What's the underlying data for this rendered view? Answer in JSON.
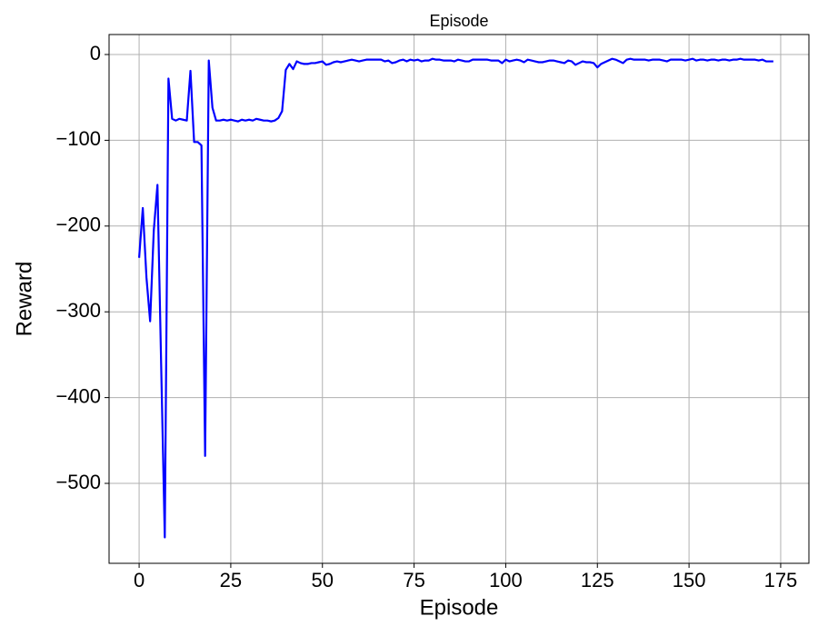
{
  "chart_data": {
    "type": "line",
    "title": "Episode",
    "xlabel": "Episode",
    "ylabel": "Reward",
    "x": [
      0,
      1,
      2,
      3,
      4,
      5,
      6,
      7,
      8,
      9,
      10,
      11,
      12,
      13,
      14,
      15,
      16,
      17,
      18,
      19,
      20,
      21,
      22,
      23,
      24,
      25,
      26,
      27,
      28,
      29,
      30,
      31,
      32,
      33,
      34,
      35,
      36,
      37,
      38,
      39,
      40,
      41,
      42,
      43,
      44,
      45,
      46,
      47,
      48,
      49,
      50,
      51,
      52,
      53,
      54,
      55,
      56,
      57,
      58,
      59,
      60,
      61,
      62,
      63,
      64,
      65,
      66,
      67,
      68,
      69,
      70,
      71,
      72,
      73,
      74,
      75,
      76,
      77,
      78,
      79,
      80,
      81,
      82,
      83,
      84,
      85,
      86,
      87,
      88,
      89,
      90,
      91,
      92,
      93,
      94,
      95,
      96,
      97,
      98,
      99,
      100,
      101,
      102,
      103,
      104,
      105,
      106,
      107,
      108,
      109,
      110,
      111,
      112,
      113,
      114,
      115,
      116,
      117,
      118,
      119,
      120,
      121,
      122,
      123,
      124,
      125,
      126,
      127,
      128,
      129,
      130,
      131,
      132,
      133,
      134,
      135,
      136,
      137,
      138,
      139,
      140,
      141,
      142,
      143,
      144,
      145,
      146,
      147,
      148,
      149,
      150,
      151,
      152,
      153,
      154,
      155,
      156,
      157,
      158,
      159,
      160,
      161,
      162,
      163,
      164,
      165,
      166,
      167,
      168,
      169,
      170,
      171,
      172,
      173
    ],
    "series": [
      {
        "color": "#0000ff",
        "values": [
          -237,
          -179,
          -260,
          -311,
          -205,
          -152,
          -360,
          -563,
          -28,
          -75,
          -77,
          -75,
          -76,
          -77,
          -19,
          -102,
          -102,
          -106,
          -468,
          -7,
          -62,
          -77,
          -77,
          -76,
          -77,
          -76,
          -77,
          -78,
          -76,
          -77,
          -76,
          -77,
          -75,
          -76,
          -77,
          -77,
          -78,
          -77,
          -74,
          -66,
          -18,
          -11,
          -17,
          -8,
          -10,
          -11,
          -11,
          -10,
          -10,
          -9,
          -8,
          -12,
          -11,
          -9,
          -8,
          -9,
          -8,
          -7,
          -6,
          -7,
          -8,
          -7,
          -6,
          -6,
          -6,
          -6,
          -6,
          -8,
          -7,
          -10,
          -9,
          -7,
          -6,
          -8,
          -6,
          -7,
          -6,
          -8,
          -7,
          -7,
          -5,
          -6,
          -6,
          -7,
          -7,
          -7,
          -8,
          -6,
          -7,
          -8,
          -8,
          -6,
          -6,
          -6,
          -6,
          -6,
          -7,
          -7,
          -7,
          -10,
          -6,
          -8,
          -7,
          -6,
          -7,
          -9,
          -6,
          -7,
          -8,
          -9,
          -9,
          -8,
          -7,
          -7,
          -8,
          -9,
          -10,
          -7,
          -8,
          -12,
          -10,
          -8,
          -9,
          -9,
          -10,
          -15,
          -11,
          -9,
          -7,
          -5,
          -6,
          -8,
          -10,
          -6,
          -5,
          -6,
          -6,
          -6,
          -6,
          -7,
          -6,
          -6,
          -6,
          -7,
          -8,
          -6,
          -6,
          -6,
          -6,
          -7,
          -6,
          -5,
          -7,
          -6,
          -6,
          -7,
          -6,
          -6,
          -7,
          -6,
          -6,
          -7,
          -6,
          -6,
          -5,
          -6,
          -6,
          -6,
          -6,
          -7,
          -6,
          -8,
          -8,
          -8
        ]
      }
    ],
    "xlim": [
      -8.2,
      182.7
    ],
    "ylim": [
      -593.2,
      23.3
    ],
    "xticks": [
      0,
      25,
      50,
      75,
      100,
      125,
      150,
      175
    ],
    "yticks": [
      0,
      {
        "value": -100,
        "label": "−100"
      },
      {
        "value": -200,
        "label": "−200"
      },
      {
        "value": -300,
        "label": "−300"
      },
      {
        "value": -400,
        "label": "−400"
      },
      {
        "value": -500,
        "label": "−500"
      }
    ],
    "grid": true
  }
}
